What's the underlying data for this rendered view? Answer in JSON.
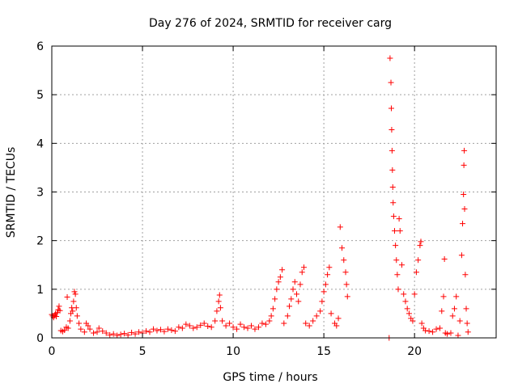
{
  "chart_data": {
    "type": "scatter",
    "title": "Day 276 of 2024, SRMTID for receiver carg",
    "xlabel": "GPS time / hours",
    "ylabel": "SRMTID / TECUs",
    "xlim": [
      0,
      24.5
    ],
    "ylim": [
      0,
      6
    ],
    "xticks": [
      0,
      5,
      10,
      15,
      20
    ],
    "yticks": [
      0,
      1,
      2,
      3,
      4,
      5,
      6
    ],
    "grid": true,
    "marker": "+",
    "color": "#ff0000",
    "series": [
      {
        "name": "SRMTID",
        "points": [
          [
            0.0,
            0.48
          ],
          [
            0.05,
            0.45
          ],
          [
            0.1,
            0.42
          ],
          [
            0.15,
            0.46
          ],
          [
            0.2,
            0.5
          ],
          [
            0.25,
            0.44
          ],
          [
            0.3,
            0.52
          ],
          [
            0.35,
            0.58
          ],
          [
            0.4,
            0.65
          ],
          [
            0.45,
            0.56
          ],
          [
            0.5,
            0.15
          ],
          [
            0.6,
            0.13
          ],
          [
            0.7,
            0.16
          ],
          [
            0.8,
            0.22
          ],
          [
            0.85,
            0.84
          ],
          [
            0.9,
            0.2
          ],
          [
            1.0,
            0.35
          ],
          [
            1.05,
            0.5
          ],
          [
            1.1,
            0.62
          ],
          [
            1.15,
            0.55
          ],
          [
            1.2,
            0.75
          ],
          [
            1.25,
            0.95
          ],
          [
            1.3,
            0.9
          ],
          [
            1.35,
            0.62
          ],
          [
            1.4,
            0.45
          ],
          [
            1.5,
            0.3
          ],
          [
            1.6,
            0.18
          ],
          [
            1.8,
            0.12
          ],
          [
            1.9,
            0.3
          ],
          [
            2.0,
            0.25
          ],
          [
            2.1,
            0.18
          ],
          [
            2.3,
            0.1
          ],
          [
            2.5,
            0.12
          ],
          [
            2.6,
            0.2
          ],
          [
            2.8,
            0.14
          ],
          [
            3.0,
            0.1
          ],
          [
            3.2,
            0.06
          ],
          [
            3.4,
            0.08
          ],
          [
            3.6,
            0.05
          ],
          [
            3.8,
            0.07
          ],
          [
            4.0,
            0.09
          ],
          [
            4.2,
            0.06
          ],
          [
            4.4,
            0.11
          ],
          [
            4.6,
            0.08
          ],
          [
            4.8,
            0.12
          ],
          [
            5.0,
            0.1
          ],
          [
            5.2,
            0.14
          ],
          [
            5.4,
            0.12
          ],
          [
            5.6,
            0.18
          ],
          [
            5.8,
            0.15
          ],
          [
            6.0,
            0.17
          ],
          [
            6.2,
            0.13
          ],
          [
            6.4,
            0.18
          ],
          [
            6.6,
            0.16
          ],
          [
            6.8,
            0.14
          ],
          [
            7.0,
            0.22
          ],
          [
            7.2,
            0.2
          ],
          [
            7.4,
            0.28
          ],
          [
            7.6,
            0.25
          ],
          [
            7.8,
            0.2
          ],
          [
            8.0,
            0.22
          ],
          [
            8.2,
            0.26
          ],
          [
            8.4,
            0.3
          ],
          [
            8.6,
            0.24
          ],
          [
            8.8,
            0.22
          ],
          [
            9.0,
            0.35
          ],
          [
            9.1,
            0.55
          ],
          [
            9.2,
            0.75
          ],
          [
            9.25,
            0.88
          ],
          [
            9.3,
            0.62
          ],
          [
            9.4,
            0.35
          ],
          [
            9.6,
            0.25
          ],
          [
            9.8,
            0.3
          ],
          [
            10.0,
            0.22
          ],
          [
            10.2,
            0.18
          ],
          [
            10.4,
            0.28
          ],
          [
            10.6,
            0.22
          ],
          [
            10.8,
            0.2
          ],
          [
            11.0,
            0.25
          ],
          [
            11.2,
            0.18
          ],
          [
            11.4,
            0.22
          ],
          [
            11.6,
            0.3
          ],
          [
            11.8,
            0.28
          ],
          [
            12.0,
            0.35
          ],
          [
            12.1,
            0.45
          ],
          [
            12.2,
            0.6
          ],
          [
            12.3,
            0.8
          ],
          [
            12.4,
            1.0
          ],
          [
            12.5,
            1.15
          ],
          [
            12.6,
            1.25
          ],
          [
            12.7,
            1.4
          ],
          [
            12.8,
            0.3
          ],
          [
            13.0,
            0.45
          ],
          [
            13.1,
            0.65
          ],
          [
            13.2,
            0.8
          ],
          [
            13.3,
            1.0
          ],
          [
            13.4,
            1.15
          ],
          [
            13.5,
            0.9
          ],
          [
            13.6,
            0.75
          ],
          [
            13.7,
            1.1
          ],
          [
            13.8,
            1.35
          ],
          [
            13.9,
            1.45
          ],
          [
            14.0,
            0.3
          ],
          [
            14.2,
            0.25
          ],
          [
            14.4,
            0.35
          ],
          [
            14.6,
            0.45
          ],
          [
            14.8,
            0.55
          ],
          [
            14.9,
            0.75
          ],
          [
            15.0,
            0.95
          ],
          [
            15.1,
            1.1
          ],
          [
            15.2,
            1.3
          ],
          [
            15.3,
            1.45
          ],
          [
            15.4,
            0.5
          ],
          [
            15.6,
            0.3
          ],
          [
            15.7,
            0.25
          ],
          [
            15.8,
            0.4
          ],
          [
            15.9,
            2.28
          ],
          [
            16.0,
            1.85
          ],
          [
            16.1,
            1.6
          ],
          [
            16.2,
            1.35
          ],
          [
            16.25,
            1.1
          ],
          [
            16.3,
            0.85
          ],
          [
            18.6,
            0.0
          ],
          [
            18.65,
            5.75
          ],
          [
            18.7,
            5.25
          ],
          [
            18.72,
            4.72
          ],
          [
            18.74,
            4.28
          ],
          [
            18.76,
            3.85
          ],
          [
            18.78,
            3.45
          ],
          [
            18.8,
            3.1
          ],
          [
            18.82,
            2.78
          ],
          [
            18.85,
            2.5
          ],
          [
            18.9,
            2.2
          ],
          [
            18.95,
            1.9
          ],
          [
            19.0,
            1.6
          ],
          [
            19.05,
            1.3
          ],
          [
            19.1,
            1.0
          ],
          [
            19.15,
            2.45
          ],
          [
            19.2,
            2.2
          ],
          [
            19.3,
            1.5
          ],
          [
            19.4,
            0.9
          ],
          [
            19.5,
            0.75
          ],
          [
            19.6,
            0.6
          ],
          [
            19.7,
            0.5
          ],
          [
            19.8,
            0.4
          ],
          [
            19.9,
            0.35
          ],
          [
            20.0,
            0.9
          ],
          [
            20.1,
            1.35
          ],
          [
            20.2,
            1.6
          ],
          [
            20.3,
            1.9
          ],
          [
            20.35,
            1.98
          ],
          [
            20.4,
            0.3
          ],
          [
            20.5,
            0.2
          ],
          [
            20.6,
            0.15
          ],
          [
            20.8,
            0.14
          ],
          [
            21.0,
            0.12
          ],
          [
            21.2,
            0.18
          ],
          [
            21.4,
            0.2
          ],
          [
            21.5,
            0.55
          ],
          [
            21.6,
            0.85
          ],
          [
            21.65,
            1.62
          ],
          [
            21.7,
            0.1
          ],
          [
            21.8,
            0.08
          ],
          [
            22.0,
            0.1
          ],
          [
            22.1,
            0.45
          ],
          [
            22.2,
            0.6
          ],
          [
            22.3,
            0.85
          ],
          [
            22.4,
            0.05
          ],
          [
            22.5,
            0.35
          ],
          [
            22.6,
            1.7
          ],
          [
            22.65,
            2.35
          ],
          [
            22.7,
            2.95
          ],
          [
            22.72,
            3.55
          ],
          [
            22.74,
            3.85
          ],
          [
            22.76,
            2.65
          ],
          [
            22.8,
            1.3
          ],
          [
            22.85,
            0.6
          ],
          [
            22.9,
            0.3
          ],
          [
            22.95,
            0.12
          ]
        ]
      }
    ]
  }
}
